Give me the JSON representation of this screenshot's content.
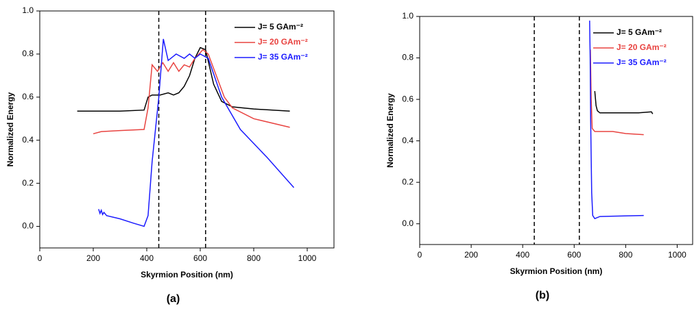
{
  "chart_data": [
    {
      "type": "line",
      "caption": "(a)",
      "xlabel": "Skyrmion Position (nm)",
      "ylabel": "Normalized Energy",
      "xlim": [
        0,
        1100
      ],
      "ylim": [
        -0.1,
        1.0
      ],
      "xticks": [
        0,
        200,
        400,
        600,
        800,
        1000
      ],
      "yticks": [
        {
          "value": 0,
          "label": "0.0"
        },
        {
          "value": 0.2,
          "label": "0.2"
        },
        {
          "value": 0.4,
          "label": "0.4"
        },
        {
          "value": 0.6,
          "label": "0.6"
        },
        {
          "value": 0.8,
          "label": "0.8"
        },
        {
          "value": 1,
          "label": "1.0"
        }
      ],
      "vlines": [
        445,
        620
      ],
      "legend": "upper right",
      "series": [
        {
          "name": "J= 5   GAm⁻²",
          "color": "#000000",
          "x": [
            140,
            300,
            390,
            405,
            420,
            450,
            480,
            500,
            520,
            540,
            560,
            580,
            600,
            620,
            650,
            680,
            720,
            800,
            935
          ],
          "values": [
            0.535,
            0.535,
            0.54,
            0.6,
            0.61,
            0.61,
            0.62,
            0.61,
            0.62,
            0.65,
            0.7,
            0.78,
            0.83,
            0.82,
            0.66,
            0.58,
            0.555,
            0.545,
            0.535
          ]
        },
        {
          "name": "J= 20 GAm⁻²",
          "color": "#e8423f",
          "x": [
            200,
            230,
            300,
            390,
            405,
            420,
            440,
            460,
            480,
            500,
            520,
            540,
            560,
            580,
            610,
            630,
            660,
            690,
            720,
            800,
            935
          ],
          "values": [
            0.43,
            0.44,
            0.445,
            0.45,
            0.55,
            0.75,
            0.72,
            0.76,
            0.72,
            0.76,
            0.72,
            0.75,
            0.74,
            0.78,
            0.82,
            0.8,
            0.7,
            0.6,
            0.55,
            0.5,
            0.46
          ]
        },
        {
          "name": "J= 35 GAm⁻²",
          "color": "#1a1aff",
          "x": [
            220,
            225,
            230,
            235,
            240,
            250,
            300,
            350,
            390,
            405,
            420,
            445,
            462,
            480,
            510,
            540,
            560,
            580,
            600,
            630,
            680,
            750,
            850,
            950
          ],
          "values": [
            0.08,
            0.06,
            0.075,
            0.055,
            0.065,
            0.05,
            0.035,
            0.015,
            0.0,
            0.05,
            0.3,
            0.6,
            0.87,
            0.77,
            0.8,
            0.78,
            0.8,
            0.78,
            0.8,
            0.78,
            0.6,
            0.45,
            0.32,
            0.18
          ]
        }
      ]
    },
    {
      "type": "line",
      "caption": "(b)",
      "xlabel": "Skyrmion Position (nm)",
      "ylabel": "Normalized Energy",
      "xlim": [
        0,
        1060
      ],
      "ylim": [
        -0.1,
        1.0
      ],
      "xticks": [
        0,
        200,
        400,
        600,
        800,
        1000
      ],
      "yticks": [
        {
          "value": 0,
          "label": "0.0"
        },
        {
          "value": 0.2,
          "label": "0.2"
        },
        {
          "value": 0.4,
          "label": "0.4"
        },
        {
          "value": 0.6,
          "label": "0.6"
        },
        {
          "value": 0.8,
          "label": "0.8"
        },
        {
          "value": 1,
          "label": "1.0"
        }
      ],
      "vlines": [
        445,
        620
      ],
      "legend": "upper right",
      "series": [
        {
          "name": "J= 5   GAm⁻²",
          "color": "#000000",
          "x": [
            680,
            685,
            690,
            700,
            750,
            850,
            900,
            905
          ],
          "values": [
            0.64,
            0.57,
            0.545,
            0.535,
            0.535,
            0.535,
            0.54,
            0.53
          ]
        },
        {
          "name": "J= 20 GAm⁻²",
          "color": "#e8423f",
          "x": [
            663,
            666,
            670,
            680,
            750,
            800,
            870
          ],
          "values": [
            0.84,
            0.6,
            0.46,
            0.445,
            0.445,
            0.435,
            0.43
          ]
        },
        {
          "name": "J= 35 GAm⁻²",
          "color": "#1a1aff",
          "x": [
            660,
            662,
            664,
            668,
            672,
            680,
            700,
            870
          ],
          "values": [
            0.98,
            0.8,
            0.5,
            0.15,
            0.04,
            0.025,
            0.035,
            0.04
          ]
        }
      ]
    }
  ]
}
